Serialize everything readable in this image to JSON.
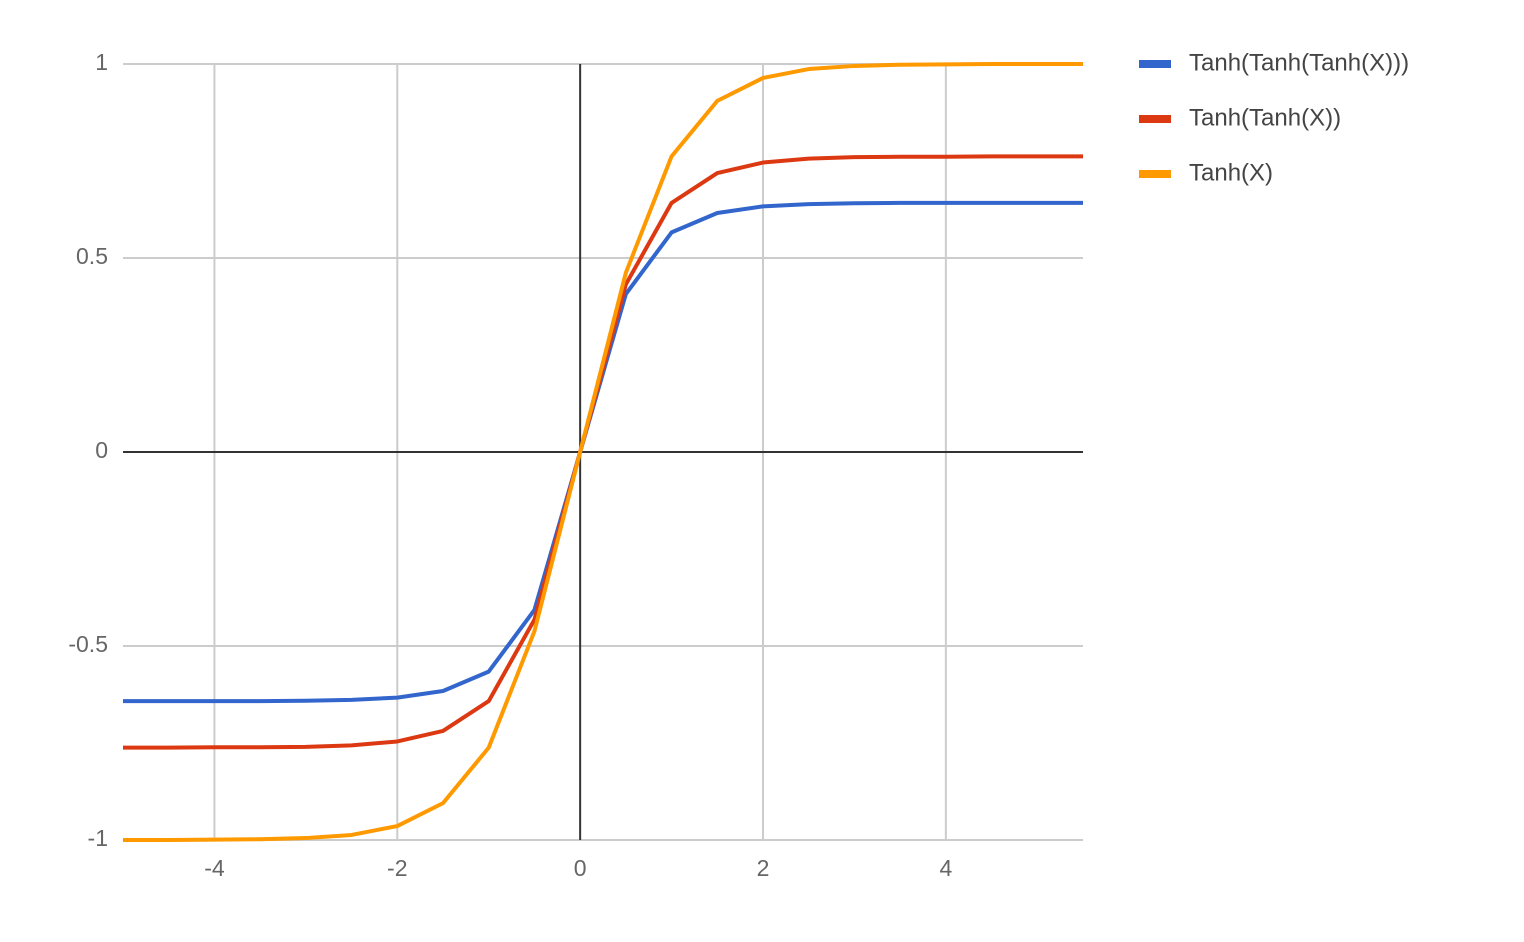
{
  "chart_data": {
    "type": "line",
    "x": [
      -5,
      -4.5,
      -4,
      -3.5,
      -3,
      -2.5,
      -2,
      -1.5,
      -1,
      -0.5,
      0,
      0.5,
      1,
      1.5,
      2,
      2.5,
      3,
      3.5,
      4,
      4.5,
      5,
      5.5
    ],
    "series": [
      {
        "name": "Tanh(Tanh(Tanh(X)))",
        "color": "#3366cc",
        "values": [
          -0.642,
          -0.642,
          -0.642,
          -0.642,
          -0.641,
          -0.639,
          -0.633,
          -0.616,
          -0.566,
          -0.407,
          0,
          0.407,
          0.566,
          0.616,
          0.633,
          0.639,
          0.641,
          0.642,
          0.642,
          0.642,
          0.642,
          0.642
        ]
      },
      {
        "name": "Tanh(Tanh(X))",
        "color": "#dc3912",
        "values": [
          -0.762,
          -0.762,
          -0.761,
          -0.761,
          -0.76,
          -0.756,
          -0.746,
          -0.719,
          -0.642,
          -0.432,
          0,
          0.432,
          0.642,
          0.719,
          0.746,
          0.756,
          0.76,
          0.761,
          0.761,
          0.762,
          0.762,
          0.762
        ]
      },
      {
        "name": "Tanh(X)",
        "color": "#ff9900",
        "values": [
          -1.0,
          -1.0,
          -0.999,
          -0.998,
          -0.995,
          -0.987,
          -0.964,
          -0.905,
          -0.762,
          -0.462,
          0,
          0.462,
          0.762,
          0.905,
          0.964,
          0.987,
          0.995,
          0.998,
          0.999,
          1.0,
          1.0,
          1.0
        ]
      }
    ],
    "xlim": [
      -5,
      5.5
    ],
    "xticks": [
      -4,
      -2,
      0,
      2,
      4
    ],
    "ylim": [
      -1,
      1
    ],
    "yticks": [
      -1,
      -0.5,
      0,
      0.5,
      1
    ],
    "grid": true,
    "legend": "right"
  }
}
